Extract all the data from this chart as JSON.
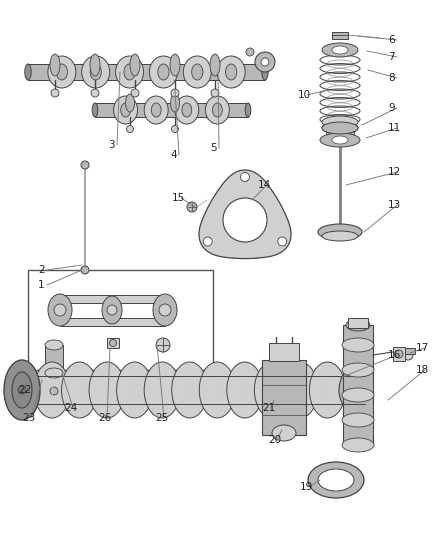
{
  "bg_color": "#ffffff",
  "lc": "#444444",
  "fc_light": "#d0d0d0",
  "fc_mid": "#b8b8b8",
  "fc_dark": "#909090",
  "label_color": "#222222",
  "figsize": [
    4.38,
    5.33
  ],
  "dpi": 100
}
